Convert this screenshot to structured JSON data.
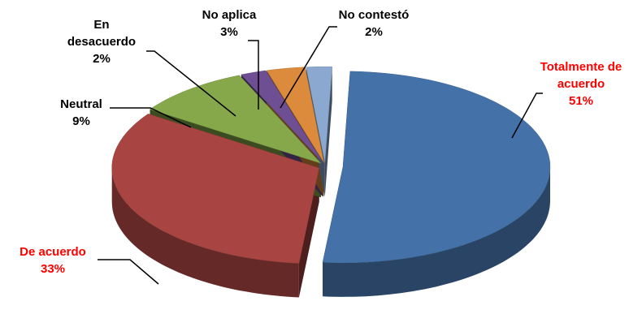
{
  "chart_data": {
    "type": "pie",
    "categories": [
      "Totalmente de acuerdo",
      "De acuerdo",
      "Neutral",
      "En desacuerdo",
      "No aplica",
      "No contestó"
    ],
    "values": [
      51,
      33,
      9,
      2,
      3,
      2
    ],
    "value_labels": [
      "51%",
      "33%",
      "9%",
      "2%",
      "3%",
      "2%"
    ],
    "colors": [
      "#4472a8",
      "#a84442",
      "#86a84a",
      "#6f4f94",
      "#dc8a3b",
      "#8aa8d0"
    ],
    "label_colors": [
      "#ff0000",
      "#ff0000",
      "#000000",
      "#000000",
      "#000000",
      "#000000"
    ]
  }
}
